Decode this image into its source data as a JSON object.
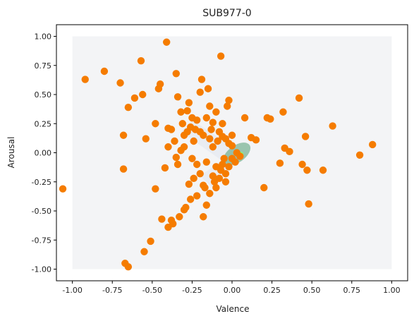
{
  "chart_data": {
    "type": "scatter",
    "title": "SUB977-0",
    "xlabel": "Valence",
    "ylabel": "Arousal",
    "xlim": [
      -1.1,
      1.1
    ],
    "ylim": [
      -1.1,
      1.1
    ],
    "x_ticks": [
      "-1.00",
      "-0.75",
      "-0.50",
      "-0.25",
      "0.00",
      "0.25",
      "0.50",
      "0.75",
      "1.00"
    ],
    "y_ticks": [
      "-1.00",
      "-0.75",
      "-0.50",
      "-0.25",
      "0.00",
      "0.25",
      "0.50",
      "0.75",
      "1.00"
    ],
    "grid": false,
    "colors": {
      "points": "#f57c00",
      "density_background": "#f3f4f6",
      "density_core": "#2e8b57",
      "density_peak": "#7fff7f"
    },
    "density_region": {
      "x": [
        -1.0,
        1.0
      ],
      "y": [
        -1.0,
        1.0
      ]
    },
    "series": [
      {
        "values": [
          [
            -1.06,
            -0.31
          ],
          [
            -0.92,
            0.63
          ],
          [
            -0.8,
            0.7
          ],
          [
            -0.7,
            0.6
          ],
          [
            -0.68,
            0.15
          ],
          [
            -0.68,
            -0.14
          ],
          [
            -0.65,
            0.39
          ],
          [
            -0.67,
            -0.95
          ],
          [
            -0.65,
            -0.98
          ],
          [
            -0.61,
            0.47
          ],
          [
            -0.57,
            0.79
          ],
          [
            -0.56,
            0.5
          ],
          [
            -0.54,
            0.12
          ],
          [
            -0.55,
            -0.85
          ],
          [
            -0.51,
            -0.76
          ],
          [
            -0.48,
            0.25
          ],
          [
            -0.48,
            -0.31
          ],
          [
            -0.46,
            0.55
          ],
          [
            -0.45,
            0.59
          ],
          [
            -0.44,
            -0.57
          ],
          [
            -0.42,
            -0.13
          ],
          [
            -0.41,
            0.95
          ],
          [
            -0.4,
            0.21
          ],
          [
            -0.4,
            0.05
          ],
          [
            -0.4,
            -0.64
          ],
          [
            -0.38,
            0.2
          ],
          [
            -0.38,
            -0.58
          ],
          [
            -0.37,
            -0.61
          ],
          [
            -0.36,
            0.1
          ],
          [
            -0.35,
            0.68
          ],
          [
            -0.35,
            -0.04
          ],
          [
            -0.34,
            0.48
          ],
          [
            -0.33,
            -0.55
          ],
          [
            -0.32,
            0.35
          ],
          [
            -0.31,
            0.25
          ],
          [
            -0.3,
            0.05
          ],
          [
            -0.3,
            -0.49
          ],
          [
            -0.29,
            -0.47
          ],
          [
            -0.28,
            0.36
          ],
          [
            -0.27,
            0.43
          ],
          [
            -0.27,
            -0.27
          ],
          [
            -0.26,
            -0.4
          ],
          [
            -0.25,
            0.3
          ],
          [
            -0.24,
            0.1
          ],
          [
            -0.23,
            0.2
          ],
          [
            -0.22,
            -0.1
          ],
          [
            -0.22,
            -0.37
          ],
          [
            -0.2,
            0.52
          ],
          [
            -0.19,
            0.63
          ],
          [
            -0.18,
            0.15
          ],
          [
            -0.17,
            -0.3
          ],
          [
            -0.15,
            0.55
          ],
          [
            -0.14,
            0.4
          ],
          [
            -0.13,
            0.2
          ],
          [
            -0.12,
            0.05
          ],
          [
            -0.11,
            -0.25
          ],
          [
            -0.1,
            0.35
          ],
          [
            -0.09,
            0.1
          ],
          [
            -0.07,
            0.83
          ],
          [
            -0.06,
            0.25
          ],
          [
            -0.05,
            -0.05
          ],
          [
            -0.03,
            0.4
          ],
          [
            -0.02,
            0.45
          ],
          [
            0.0,
            0.15
          ],
          [
            0.03,
            0.0
          ],
          [
            0.05,
            -0.03
          ],
          [
            0.08,
            0.3
          ],
          [
            0.12,
            0.13
          ],
          [
            0.15,
            0.11
          ],
          [
            0.2,
            -0.3
          ],
          [
            0.22,
            0.3
          ],
          [
            0.24,
            0.29
          ],
          [
            0.3,
            -0.09
          ],
          [
            0.32,
            0.35
          ],
          [
            0.33,
            0.04
          ],
          [
            0.36,
            0.01
          ],
          [
            0.42,
            0.47
          ],
          [
            0.44,
            -0.1
          ],
          [
            0.46,
            0.14
          ],
          [
            0.47,
            -0.15
          ],
          [
            0.48,
            -0.44
          ],
          [
            0.57,
            -0.15
          ],
          [
            0.63,
            0.23
          ],
          [
            0.8,
            -0.02
          ],
          [
            0.88,
            0.07
          ],
          [
            -0.25,
            -0.05
          ],
          [
            -0.2,
            -0.18
          ],
          [
            -0.18,
            -0.55
          ],
          [
            -0.16,
            -0.45
          ],
          [
            -0.14,
            -0.35
          ],
          [
            -0.12,
            -0.2
          ],
          [
            -0.1,
            -0.12
          ],
          [
            -0.08,
            -0.22
          ],
          [
            -0.06,
            -0.1
          ],
          [
            -0.04,
            -0.18
          ],
          [
            -0.02,
            -0.12
          ],
          [
            0.0,
            -0.05
          ],
          [
            0.02,
            -0.08
          ],
          [
            -0.28,
            0.18
          ],
          [
            -0.26,
            0.22
          ],
          [
            -0.22,
            0.28
          ],
          [
            -0.2,
            0.18
          ],
          [
            -0.16,
            0.3
          ],
          [
            -0.14,
            0.12
          ],
          [
            -0.12,
            0.26
          ],
          [
            -0.08,
            0.18
          ],
          [
            -0.06,
            0.14
          ],
          [
            -0.04,
            0.12
          ],
          [
            -0.02,
            0.08
          ],
          [
            0.0,
            0.06
          ],
          [
            -0.3,
            0.15
          ],
          [
            -0.32,
            0.02
          ],
          [
            -0.34,
            -0.1
          ],
          [
            -0.24,
            -0.22
          ],
          [
            -0.18,
            -0.28
          ],
          [
            -0.16,
            -0.08
          ],
          [
            -0.1,
            -0.3
          ],
          [
            -0.07,
            -0.15
          ],
          [
            -0.04,
            -0.25
          ]
        ]
      }
    ]
  }
}
